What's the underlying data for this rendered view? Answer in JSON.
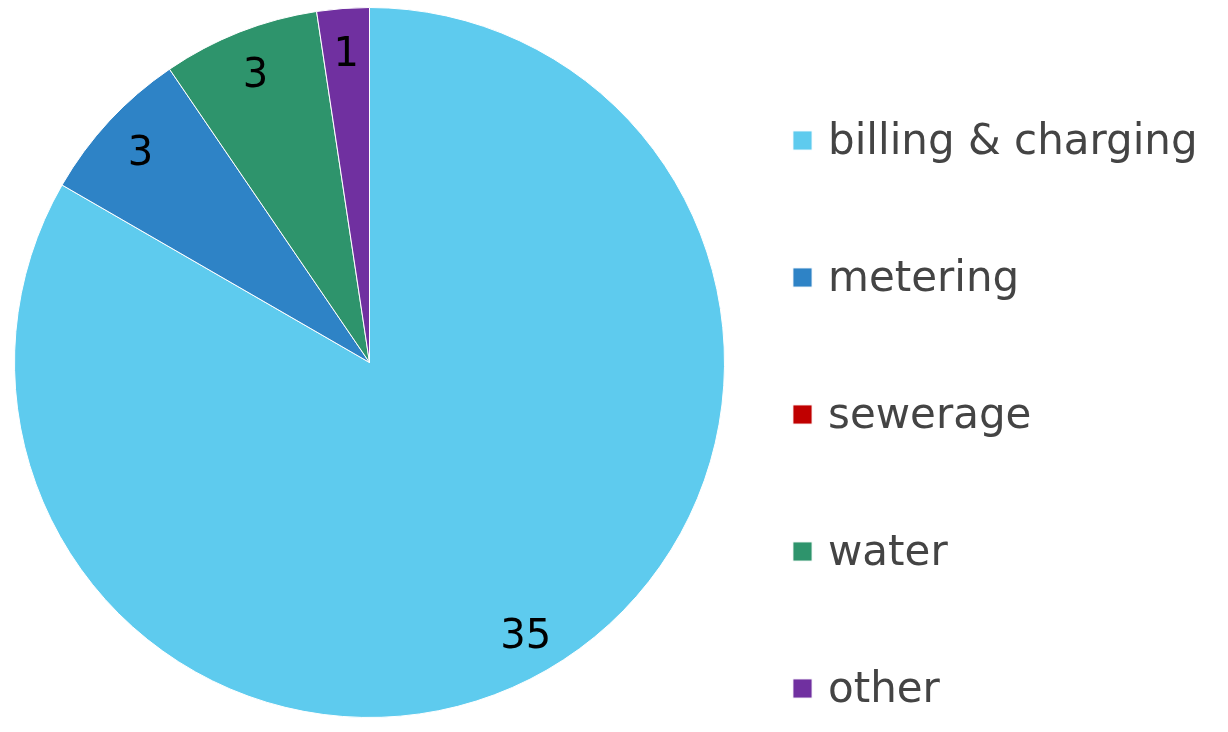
{
  "chart_data": {
    "type": "pie",
    "categories": [
      "billing & charging",
      "metering",
      "sewerage",
      "water",
      "other"
    ],
    "values": [
      35,
      3,
      0,
      3,
      1
    ],
    "colors": [
      "#5ecbee",
      "#2e83c6",
      "#c00000",
      "#2e946c",
      "#7030a0"
    ],
    "value_labels": [
      "35",
      "3",
      null,
      "3",
      "1"
    ],
    "legend": "right"
  }
}
